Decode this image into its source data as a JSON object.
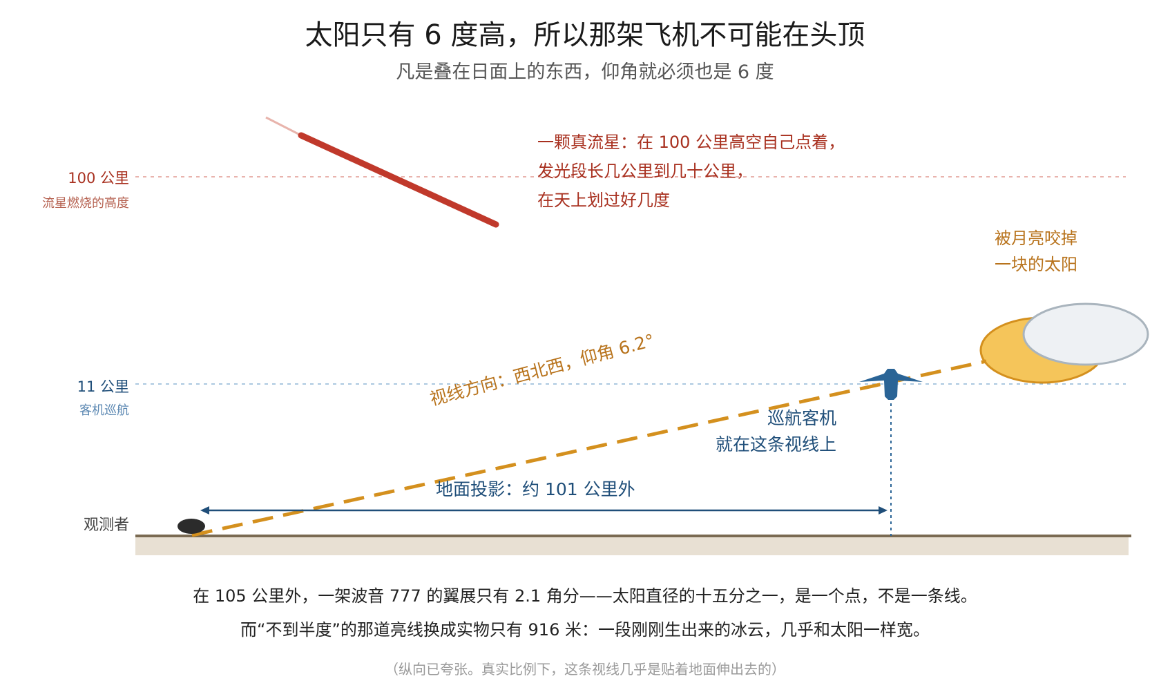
{
  "title": "太阳只有 6 度高，所以那架飞机不可能在头顶",
  "subtitle": "凡是叠在日面上的东西，仰角就必须也是 6 度",
  "levels": {
    "meteor": {
      "value": "100 公里",
      "label": "流星燃烧的高度"
    },
    "airliner": {
      "value": "11 公里",
      "label": "客机巡航"
    },
    "observer": "观测者"
  },
  "annotations": {
    "meteor": "一颗真流星：在 100 公里高空自己点着，\n发光段长几公里到几十公里，\n在天上划过好几度",
    "eclipse": "被月亮咬掉\n一块的太阳",
    "plane": "巡航客机\n就在这条视线上",
    "sightline": "视线方向：西北西，仰角 6.2°",
    "ground": "地面投影：约 101 公里外"
  },
  "captions": {
    "line1": "在 105 公里外，一架波音 777 的翼展只有 2.1 角分——太阳直径的十五分之一，是一个点，不是一条线。",
    "line2": "而“不到半度”的那道亮线换成实物只有 916 米：一段刚刚生出来的冰云，几乎和太阳一样宽。",
    "footnote": "（纵向已夸张。真实比例下，这条视线几乎是贴着地面伸出去的）"
  },
  "colors": {
    "meteor": "#c0392b",
    "meteor_tail": "#e8b4ac",
    "sightline": "#d4901e",
    "sun": "#f5c55a",
    "sun_edge": "#d4901e",
    "moon": "#eef1f4",
    "plane": "#2a6496",
    "navy": "#1f4e79",
    "ground": "#e8e0d3",
    "ground_line": "#7a6a52"
  },
  "icons": {
    "observer": "observer-dot-icon",
    "airplane": "airplane-icon",
    "sun": "eclipsed-sun-icon"
  }
}
